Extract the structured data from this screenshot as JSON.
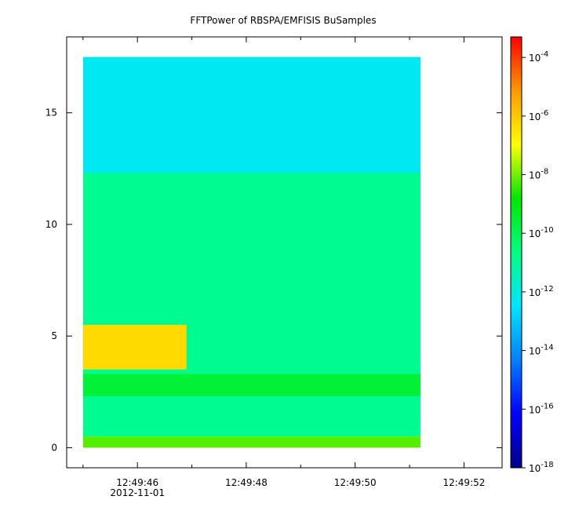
{
  "chart_data": {
    "type": "heatmap",
    "title": "FFTPower of RBSPA/EMFISIS  BuSamples",
    "xlabel": "",
    "ylabel": "",
    "x_ticks": [
      {
        "t": 46,
        "label": "12:49:46",
        "sublabel": "2012-11-01"
      },
      {
        "t": 48,
        "label": "12:49:48",
        "sublabel": ""
      },
      {
        "t": 50,
        "label": "12:49:50",
        "sublabel": ""
      },
      {
        "t": 52,
        "label": "12:49:52",
        "sublabel": ""
      }
    ],
    "x_minor_ticks": [
      45,
      47,
      49,
      51
    ],
    "xlim_seconds": [
      44.7,
      52.7
    ],
    "data_extent_seconds": [
      45.0,
      51.2
    ],
    "y_ticks": [
      0,
      5,
      10,
      15
    ],
    "ylim": [
      -0.9,
      18.4
    ],
    "data_extent_y": [
      0,
      17.5
    ],
    "colorbar": {
      "scale": "log",
      "range_exp": [
        -18,
        -3.3
      ],
      "ticks": [
        {
          "base": "10",
          "exp": "-4",
          "value": -4
        },
        {
          "base": "10",
          "exp": "-6",
          "value": -6
        },
        {
          "base": "10",
          "exp": "-8",
          "value": -8
        },
        {
          "base": "10",
          "exp": "-10",
          "value": -10
        },
        {
          "base": "10",
          "exp": "-12",
          "value": -12
        },
        {
          "base": "10",
          "exp": "-14",
          "value": -14
        },
        {
          "base": "10",
          "exp": "-16",
          "value": -16
        },
        {
          "base": "10",
          "exp": "-18",
          "value": -18
        }
      ],
      "colormap": [
        "#00008b",
        "#0000ff",
        "#0080ff",
        "#00e5ff",
        "#00ff80",
        "#00e600",
        "#ffff00",
        "#ff9900",
        "#ff0000"
      ]
    },
    "regions": [
      {
        "y": [
          12.3,
          17.5
        ],
        "level_exp": -12.3,
        "description": "upper band"
      },
      {
        "y": [
          0.5,
          12.3
        ],
        "level_exp": -10.9,
        "description": "main band"
      },
      {
        "y": [
          2.3,
          3.3
        ],
        "level_exp": -9.6,
        "description": "enhanced band"
      },
      {
        "y": [
          0,
          0.5
        ],
        "level_exp": -8.2,
        "description": "low frequency band"
      },
      {
        "t": [
          45.0,
          46.9
        ],
        "y": [
          3.5,
          5.5
        ],
        "level_exp": -6.3,
        "description": "burst"
      }
    ]
  }
}
